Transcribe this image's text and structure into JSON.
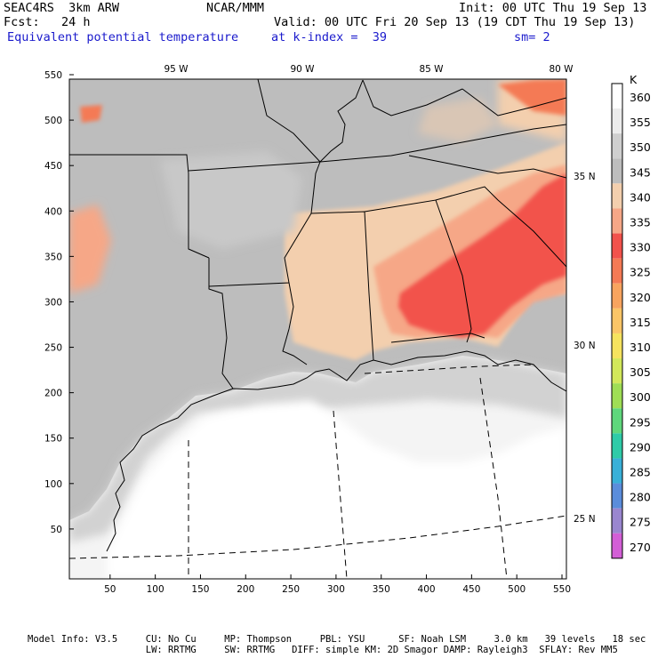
{
  "header": {
    "model_run": "SEAC4RS  3km ARW",
    "agency": "NCAR/MMM",
    "init": "Init: 00 UTC Thu 19 Sep 13",
    "fcst": "Fcst:   24 h",
    "valid": "Valid: 00 UTC Fri 20 Sep 13 (19 CDT Thu 19 Sep 13)",
    "field": "Equivalent potential temperature",
    "level": "at k-index =  39",
    "smooth": "sm= 2"
  },
  "map": {
    "x_ticks": [
      "50",
      "100",
      "150",
      "200",
      "250",
      "300",
      "350",
      "400",
      "450",
      "500",
      "550"
    ],
    "y_ticks": [
      "50",
      "100",
      "150",
      "200",
      "250",
      "300",
      "350",
      "400",
      "450",
      "500",
      "550"
    ],
    "lon_labels": [
      "95 W",
      "90 W",
      "85 W",
      "80 W"
    ],
    "lat_labels": [
      "35 N",
      "30 N",
      "25 N"
    ]
  },
  "colorbar": {
    "unit": "K",
    "levels": [
      {
        "label": "360",
        "color": "#ffffff"
      },
      {
        "label": "355",
        "color": "#ececec"
      },
      {
        "label": "350",
        "color": "#cfcfcf"
      },
      {
        "label": "345",
        "color": "#bdbdbd"
      },
      {
        "label": "340",
        "color": "#f3cfae"
      },
      {
        "label": "335",
        "color": "#f6a787"
      },
      {
        "label": "330",
        "color": "#f2524c"
      },
      {
        "label": "325",
        "color": "#f47a55"
      },
      {
        "label": "320",
        "color": "#f8a45f"
      },
      {
        "label": "315",
        "color": "#fbc567"
      },
      {
        "label": "310",
        "color": "#f6e35f"
      },
      {
        "label": "305",
        "color": "#d2e85a"
      },
      {
        "label": "300",
        "color": "#9fde55"
      },
      {
        "label": "295",
        "color": "#5fd77c"
      },
      {
        "label": "290",
        "color": "#2fcba8"
      },
      {
        "label": "285",
        "color": "#39b0d8"
      },
      {
        "label": "280",
        "color": "#5b8ddb"
      },
      {
        "label": "275",
        "color": "#9a86cf"
      },
      {
        "label": "270",
        "color": "#d35fd6"
      }
    ]
  },
  "footer": {
    "line1": "Model Info: V3.5     CU: No Cu     MP: Thompson     PBL: YSU      SF: Noah LSM     3.0 km   39 levels   18 sec",
    "line2": "                     LW: RRTMG     SW: RRTMG   DIFF: simple KM: 2D Smagor DAMP: Rayleigh3  SFLAY: Rev MM5"
  }
}
